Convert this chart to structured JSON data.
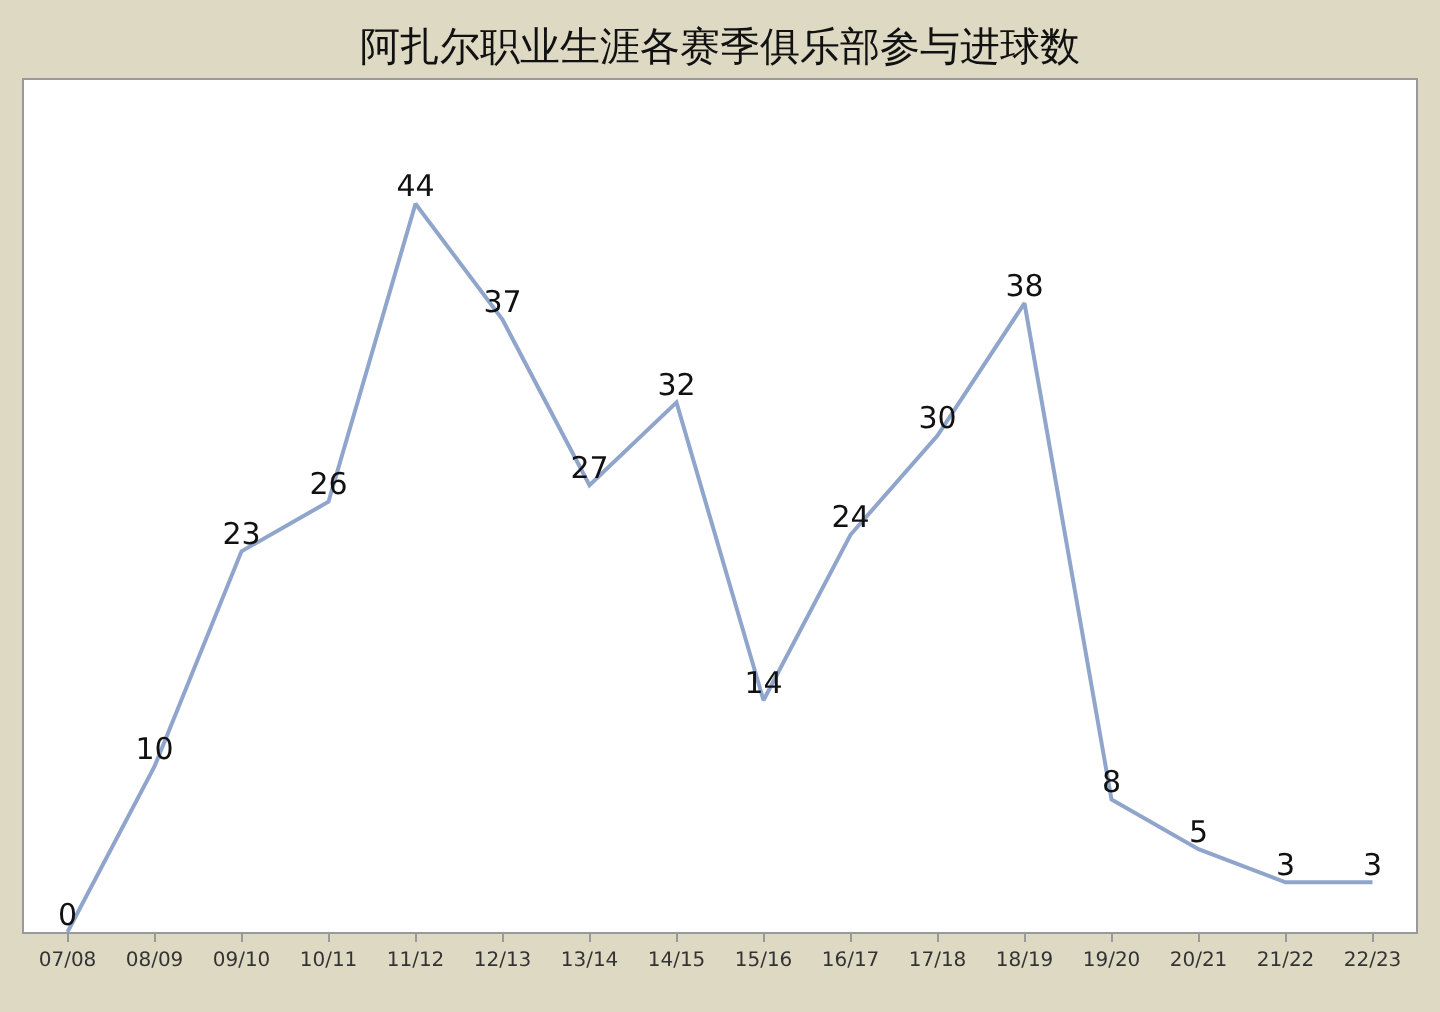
{
  "chart_data": {
    "type": "line",
    "title": "阿扎尔职业生涯各赛季俱乐部参与进球数",
    "categories": [
      "07/08",
      "08/09",
      "09/10",
      "10/11",
      "11/12",
      "12/13",
      "13/14",
      "14/15",
      "15/16",
      "16/17",
      "17/18",
      "18/19",
      "19/20",
      "20/21",
      "21/22",
      "22/23"
    ],
    "series": [
      {
        "color": "#8fa5cb",
        "values": [
          0,
          10,
          23,
          26,
          44,
          37,
          27,
          32,
          14,
          24,
          30,
          38,
          8,
          5,
          3,
          3
        ]
      }
    ],
    "data_labels": true,
    "marker": "none",
    "line_style": "solid"
  }
}
